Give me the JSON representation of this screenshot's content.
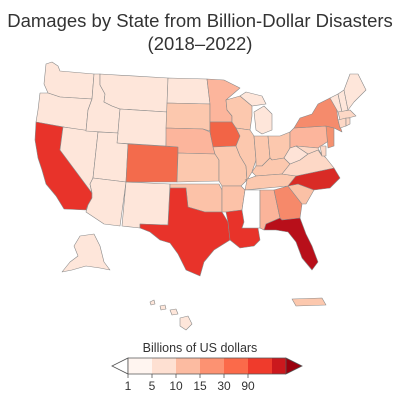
{
  "title_line1": "Damages by State from Billion-Dollar Disasters",
  "title_line2": "(2018–2022)",
  "legend": {
    "title": "Billions of US dollars",
    "ticks": [
      "1",
      "5",
      "10",
      "15",
      "30",
      "90"
    ],
    "colors": [
      "#fff5f0",
      "#fee0d2",
      "#fcbba1",
      "#fc9272",
      "#fb6a4a",
      "#ef3b2c",
      "#cb181d",
      "#99000d"
    ]
  },
  "state_colors": {
    "CA": "#e8332a",
    "TX": "#e8332a",
    "LA": "#e8332a",
    "FL": "#b80f1a",
    "NC": "#d92b26",
    "CO": "#f36b4c",
    "IA": "#f26446",
    "GA": "#f6896a",
    "NY": "#f58b6c",
    "NJ": "#f5916f",
    "MS": "#ffffff",
    "AL": "#fbb49a",
    "SC": "#fbc1a6",
    "NE": "#fcb59c",
    "MN": "#fcb59c",
    "PA": "#fcb59c",
    "OK": "#fcc2a8",
    "TN": "#fcc8ae",
    "KY": "#fcc8ae",
    "AR": "#fcc2a8",
    "KS": "#fcc8ae",
    "SD": "#fcc8ae",
    "WI": "#fcc8ae",
    "IL": "#fcc8ae",
    "MO": "#fcc8ae",
    "IN": "#fcc8ae",
    "OH": "#fcc8ae",
    "VA": "#fdd8c6",
    "MA": "#fdd8c6",
    "CT": "#fdd8c6",
    "RI": "#fdd8c6",
    "MD": "#fdd8c6",
    "DE": "#fdd8c6",
    "WV": "#fee3d7",
    "MI": "#fee6da",
    "ND": "#fee6da",
    "WA": "#fee6da",
    "OR": "#fee6da",
    "ID": "#fee6da",
    "MT": "#fee6da",
    "WY": "#fee6da",
    "NV": "#fee6da",
    "UT": "#fee6da",
    "AZ": "#fee6da",
    "NM": "#fee6da",
    "ME": "#fee6da",
    "NH": "#fee6da",
    "VT": "#fee6da",
    "AK": "#fee6da",
    "HI": "#fee6da",
    "PR": "#fcc8ae"
  }
}
